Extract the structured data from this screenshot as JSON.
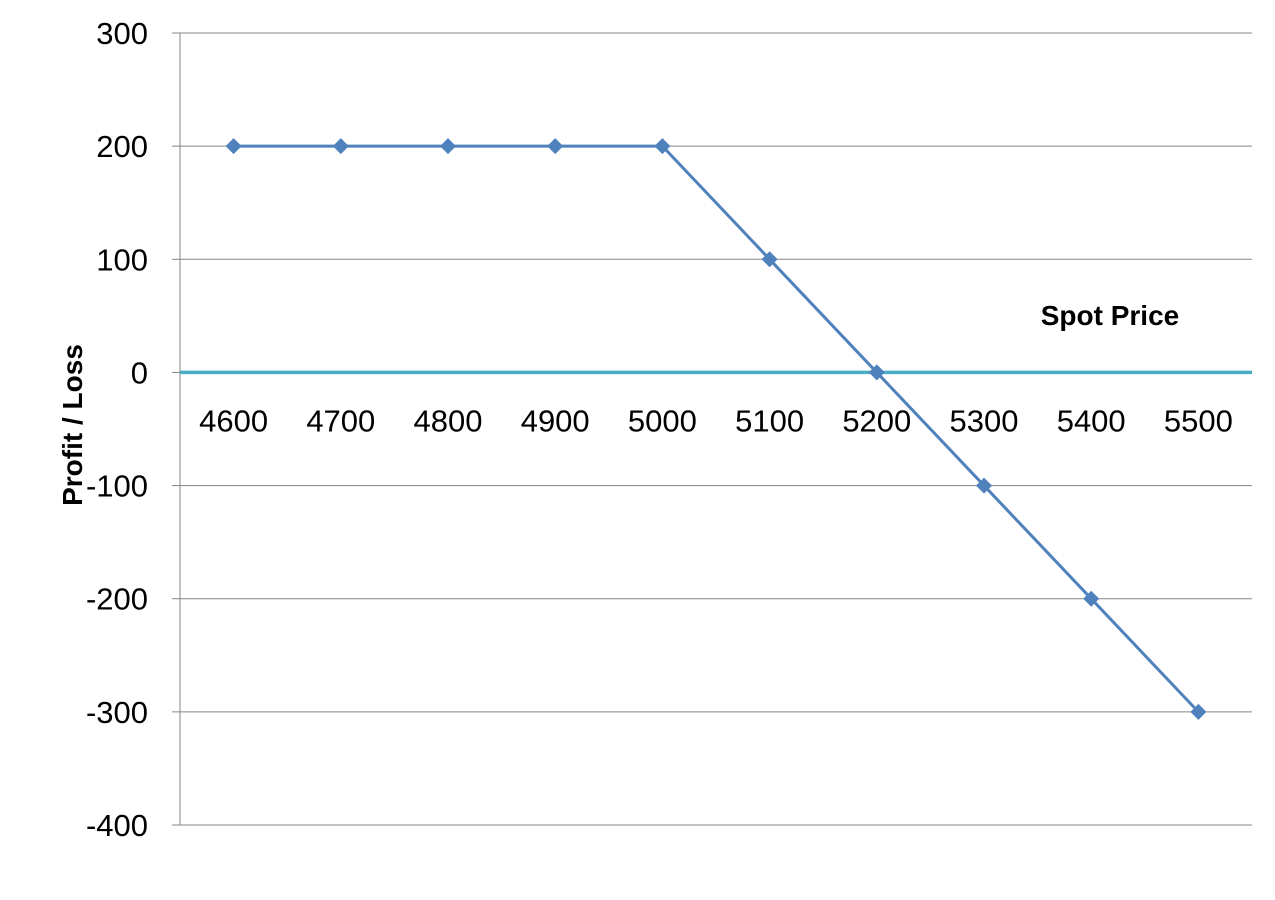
{
  "chart_data": {
    "type": "line",
    "title": "",
    "xlabel": "Spot Price",
    "ylabel": "Profit / Loss",
    "x": [
      4600,
      4700,
      4800,
      4900,
      5000,
      5100,
      5200,
      5300,
      5400,
      5500
    ],
    "series": [
      {
        "values": [
          200,
          200,
          200,
          200,
          200,
          100,
          0,
          -100,
          -200,
          -300
        ]
      }
    ],
    "ylim": [
      -400,
      300
    ],
    "yticks": [
      300,
      200,
      100,
      0,
      -100,
      -200,
      -300,
      -400
    ],
    "xticks": [
      "4600",
      "4700",
      "4800",
      "4900",
      "5000",
      "5100",
      "5200",
      "5300",
      "5400",
      "5500"
    ],
    "grid": true,
    "legend": "none",
    "colors": {
      "series": "#4F81BD",
      "zero_axis": "#4BACC6",
      "grid": "#868686"
    }
  }
}
